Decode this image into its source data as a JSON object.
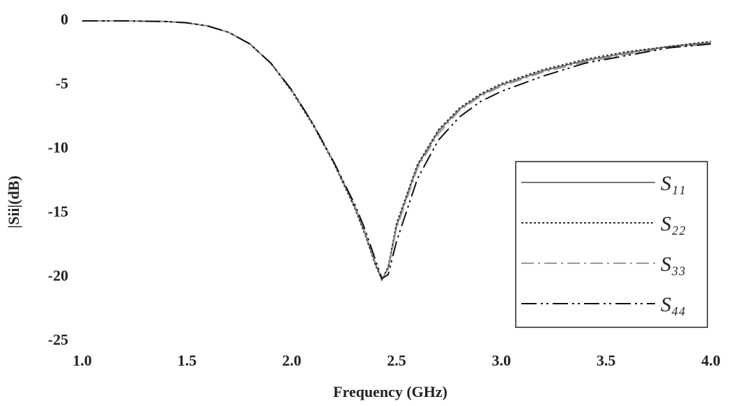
{
  "chart_data": {
    "type": "line",
    "xlabel": "Frequency (GHz)",
    "ylabel": "|Sii|(dB)",
    "x": [
      1.0,
      1.2,
      1.4,
      1.5,
      1.6,
      1.7,
      1.8,
      1.9,
      2.0,
      2.1,
      2.2,
      2.3,
      2.35,
      2.4,
      2.43,
      2.46,
      2.5,
      2.6,
      2.7,
      2.8,
      2.9,
      3.0,
      3.2,
      3.4,
      3.6,
      3.8,
      4.0
    ],
    "series": [
      {
        "name": "S₁₁",
        "color": "#777777",
        "style": "solid",
        "values": [
          0,
          0,
          -0.05,
          -0.15,
          -0.4,
          -0.9,
          -1.8,
          -3.3,
          -5.4,
          -8.0,
          -11.0,
          -14.5,
          -16.6,
          -19.0,
          -20.2,
          -19.3,
          -16.0,
          -11.3,
          -8.6,
          -6.9,
          -5.8,
          -5.0,
          -3.9,
          -3.1,
          -2.5,
          -2.0,
          -1.7
        ]
      },
      {
        "name": "S₂₂",
        "color": "#333333",
        "style": "dotted",
        "values": [
          0,
          0,
          -0.05,
          -0.15,
          -0.4,
          -0.9,
          -1.8,
          -3.3,
          -5.5,
          -8.1,
          -11.1,
          -14.6,
          -16.7,
          -19.1,
          -20.2,
          -19.2,
          -15.8,
          -11.2,
          -8.5,
          -6.8,
          -5.7,
          -4.9,
          -3.8,
          -3.0,
          -2.4,
          -2.0,
          -1.6
        ]
      },
      {
        "name": "S₃₃",
        "color": "#999999",
        "style": "dashdot",
        "values": [
          0,
          0,
          -0.05,
          -0.15,
          -0.4,
          -0.9,
          -1.8,
          -3.3,
          -5.4,
          -8.0,
          -11.0,
          -14.4,
          -16.5,
          -18.9,
          -20.1,
          -19.4,
          -16.2,
          -11.5,
          -8.8,
          -7.0,
          -5.9,
          -5.1,
          -4.0,
          -3.2,
          -2.6,
          -2.1,
          -1.8
        ]
      },
      {
        "name": "S₄₄",
        "color": "#111111",
        "style": "dashdotdot",
        "values": [
          0,
          0,
          -0.05,
          -0.15,
          -0.4,
          -0.9,
          -1.8,
          -3.3,
          -5.4,
          -8.0,
          -11.0,
          -14.3,
          -16.3,
          -18.7,
          -20.1,
          -19.8,
          -17.2,
          -12.3,
          -9.3,
          -7.5,
          -6.3,
          -5.5,
          -4.3,
          -3.3,
          -2.7,
          -2.1,
          -1.8
        ]
      }
    ],
    "xlim": [
      1,
      4
    ],
    "xticks": [
      {
        "value": 1,
        "label": "1.0"
      },
      1.5,
      {
        "value": 2,
        "label": "2.0"
      },
      2.5,
      {
        "value": 3,
        "label": "3.0"
      },
      3.5,
      {
        "value": 4,
        "label": "4.0"
      }
    ],
    "ylim": [
      -25,
      0
    ],
    "yticks": [
      0,
      -5,
      -10,
      -15,
      -20,
      -25
    ],
    "legend": "lower right"
  }
}
